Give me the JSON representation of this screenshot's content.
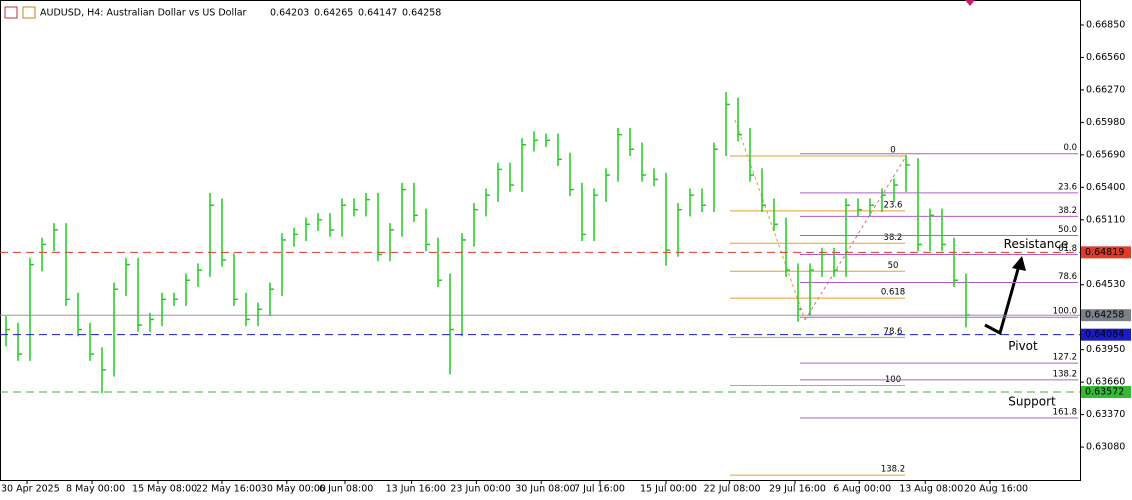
{
  "chart_data": {
    "type": "ohlc",
    "title": "AUDUSD, H4:  Australian Dollar vs US Dollar",
    "quote": [
      0.64203,
      0.64265,
      0.64147,
      0.64258
    ],
    "color": "#1fcc1f",
    "xlim": [
      -0.5,
      89.5
    ],
    "ylim": [
      0.62786,
      0.67073
    ],
    "yticks": [
      {
        "value": 0.6685,
        "label": "0.66850"
      },
      {
        "value": 0.6656,
        "label": "0.66560"
      },
      {
        "value": 0.6627,
        "label": "0.66270"
      },
      {
        "value": 0.6598,
        "label": "0.65980"
      },
      {
        "value": 0.6569,
        "label": "0.65690"
      },
      {
        "value": 0.654,
        "label": "0.65400"
      },
      {
        "value": 0.6511,
        "label": "0.65110"
      },
      {
        "value": 0.6453,
        "label": "0.64530"
      },
      {
        "value": 0.6395,
        "label": "0.63950"
      },
      {
        "value": 0.6366,
        "label": "0.63660"
      },
      {
        "value": 0.6337,
        "label": "0.63370"
      },
      {
        "value": 0.6308,
        "label": "0.63080"
      }
    ],
    "xticks": [
      {
        "value": 1.75,
        "label": "30 Apr 2025"
      },
      {
        "value": 7.17,
        "label": "8 May 00:00"
      },
      {
        "value": 12.67,
        "label": "15 May 08:00"
      },
      {
        "value": 18,
        "label": "22 May 16:00"
      },
      {
        "value": 23.4,
        "label": "30 May 00:00"
      },
      {
        "value": 28.25,
        "label": "6 Jun 08:00"
      },
      {
        "value": 33.8,
        "label": "13 Jun 16:00"
      },
      {
        "value": 39.2,
        "label": "23 Jun 00:00"
      },
      {
        "value": 44.6,
        "label": "30 Jun 08:00"
      },
      {
        "value": 49.5,
        "label": "7 Jul 16:00"
      },
      {
        "value": 55,
        "label": "15 Jul 00:00"
      },
      {
        "value": 60.3,
        "label": "22 Jul 08:00"
      },
      {
        "value": 65.75,
        "label": "29 Jul 16:00"
      },
      {
        "value": 71.1,
        "label": "6 Aug 00:00"
      },
      {
        "value": 76.6,
        "label": "13 Aug 08:00"
      },
      {
        "value": 82,
        "label": "20 Aug 16:00"
      }
    ],
    "high": [
      0.6425,
      0.6419,
      0.6477,
      0.6495,
      0.6508,
      0.6508,
      0.6446,
      0.6419,
      0.6397,
      0.6455,
      0.6477,
      0.6477,
      0.6428,
      0.6446,
      0.6446,
      0.6463,
      0.6472,
      0.6535,
      0.653,
      0.6481,
      0.6446,
      0.6437,
      0.6455,
      0.6499,
      0.6504,
      0.6513,
      0.6517,
      0.6517,
      0.653,
      0.653,
      0.6535,
      0.6535,
      0.6508,
      0.6544,
      0.6544,
      0.6521,
      0.6495,
      0.6463,
      0.6499,
      0.6526,
      0.6539,
      0.6562,
      0.6562,
      0.6584,
      0.659,
      0.6588,
      0.6588,
      0.6571,
      0.6544,
      0.6539,
      0.6557,
      0.6593,
      0.6593,
      0.658,
      0.6557,
      0.6553,
      0.6526,
      0.6539,
      0.6539,
      0.658,
      0.6625,
      0.662,
      0.6593,
      0.6557,
      0.653,
      0.6513,
      0.6472,
      0.6472,
      0.6486,
      0.6486,
      0.653,
      0.653,
      0.653,
      0.6539,
      0.6548,
      0.6569,
      0.6566,
      0.6521,
      0.6521,
      0.6495,
      0.6463
    ],
    "low": [
      0.6398,
      0.6385,
      0.6385,
      0.6465,
      0.6483,
      0.6434,
      0.6407,
      0.6385,
      0.6356,
      0.6371,
      0.6443,
      0.6411,
      0.6411,
      0.6416,
      0.6434,
      0.6434,
      0.6451,
      0.646,
      0.6469,
      0.6434,
      0.6416,
      0.6416,
      0.6425,
      0.6443,
      0.6487,
      0.6492,
      0.6501,
      0.6496,
      0.6496,
      0.6514,
      0.6514,
      0.6474,
      0.6474,
      0.6496,
      0.6509,
      0.6483,
      0.6451,
      0.6373,
      0.6407,
      0.6487,
      0.6514,
      0.6527,
      0.6536,
      0.6536,
      0.6572,
      0.6576,
      0.6559,
      0.6532,
      0.6492,
      0.6492,
      0.6527,
      0.6545,
      0.6568,
      0.6545,
      0.6541,
      0.647,
      0.6478,
      0.6514,
      0.6518,
      0.6518,
      0.6568,
      0.6581,
      0.6545,
      0.6518,
      0.6501,
      0.646,
      0.642,
      0.6425,
      0.646,
      0.646,
      0.646,
      0.6514,
      0.6514,
      0.6518,
      0.6527,
      0.6536,
      0.6483,
      0.6483,
      0.6483,
      0.6451,
      0.6415
    ],
    "close": [
      0.6413,
      0.6391,
      0.6471,
      0.6489,
      0.6502,
      0.644,
      0.6413,
      0.6391,
      0.6377,
      0.6449,
      0.6471,
      0.6417,
      0.6422,
      0.644,
      0.644,
      0.6457,
      0.6466,
      0.6524,
      0.6475,
      0.644,
      0.6422,
      0.6431,
      0.6449,
      0.6493,
      0.6498,
      0.6507,
      0.6511,
      0.6502,
      0.6524,
      0.652,
      0.6529,
      0.648,
      0.6502,
      0.6538,
      0.6515,
      0.6489,
      0.6457,
      0.6413,
      0.6493,
      0.652,
      0.6533,
      0.6556,
      0.6542,
      0.6578,
      0.6582,
      0.6582,
      0.6565,
      0.6538,
      0.6498,
      0.6533,
      0.6551,
      0.6587,
      0.6574,
      0.6551,
      0.6547,
      0.6484,
      0.652,
      0.6533,
      0.6524,
      0.6574,
      0.6614,
      0.6587,
      0.6551,
      0.6524,
      0.6507,
      0.6466,
      0.6431,
      0.6466,
      0.648,
      0.6466,
      0.6524,
      0.652,
      0.6524,
      0.6533,
      0.6542,
      0.656,
      0.6489,
      0.6515,
      0.6489,
      0.6457,
      0.6426
    ],
    "levels": [
      {
        "name": "Resistance",
        "value": 0.64819,
        "color": "#e03a2a"
      },
      {
        "name": "Pivot",
        "value": 0.64084,
        "color": "#1a1acc"
      },
      {
        "name": "Support",
        "value": 0.63572,
        "color": "#33bb33"
      }
    ],
    "last_price": 0.64258,
    "fibonacci": [
      {
        "color": "#e0a030",
        "levels": [
          {
            "label": "0",
            "value": 0.6568
          },
          {
            "label": "23.6",
            "value": 0.6519
          },
          {
            "label": "38.2",
            "value": 0.649
          },
          {
            "label": "50",
            "value": 0.6465
          },
          {
            "label": "0.618",
            "value": 0.6441
          },
          {
            "label": "78.6",
            "value": 0.6406
          },
          {
            "label": "100",
            "value": 0.6363
          },
          {
            "label": "138.2",
            "value": 0.6283
          }
        ]
      },
      {
        "color": "#b35ec9",
        "levels": [
          {
            "label": "0.0",
            "value": 0.657
          },
          {
            "label": "23.6",
            "value": 0.6535
          },
          {
            "label": "38.2",
            "value": 0.6514
          },
          {
            "label": "50.0",
            "value": 0.6497
          },
          {
            "label": "61.8",
            "value": 0.648
          },
          {
            "label": "78.6",
            "value": 0.6455
          },
          {
            "label": "100.0",
            "value": 0.6424
          },
          {
            "label": "127.2",
            "value": 0.6383
          },
          {
            "label": "138.2",
            "value": 0.6368
          },
          {
            "label": "161.8",
            "value": 0.6334
          }
        ]
      }
    ]
  }
}
